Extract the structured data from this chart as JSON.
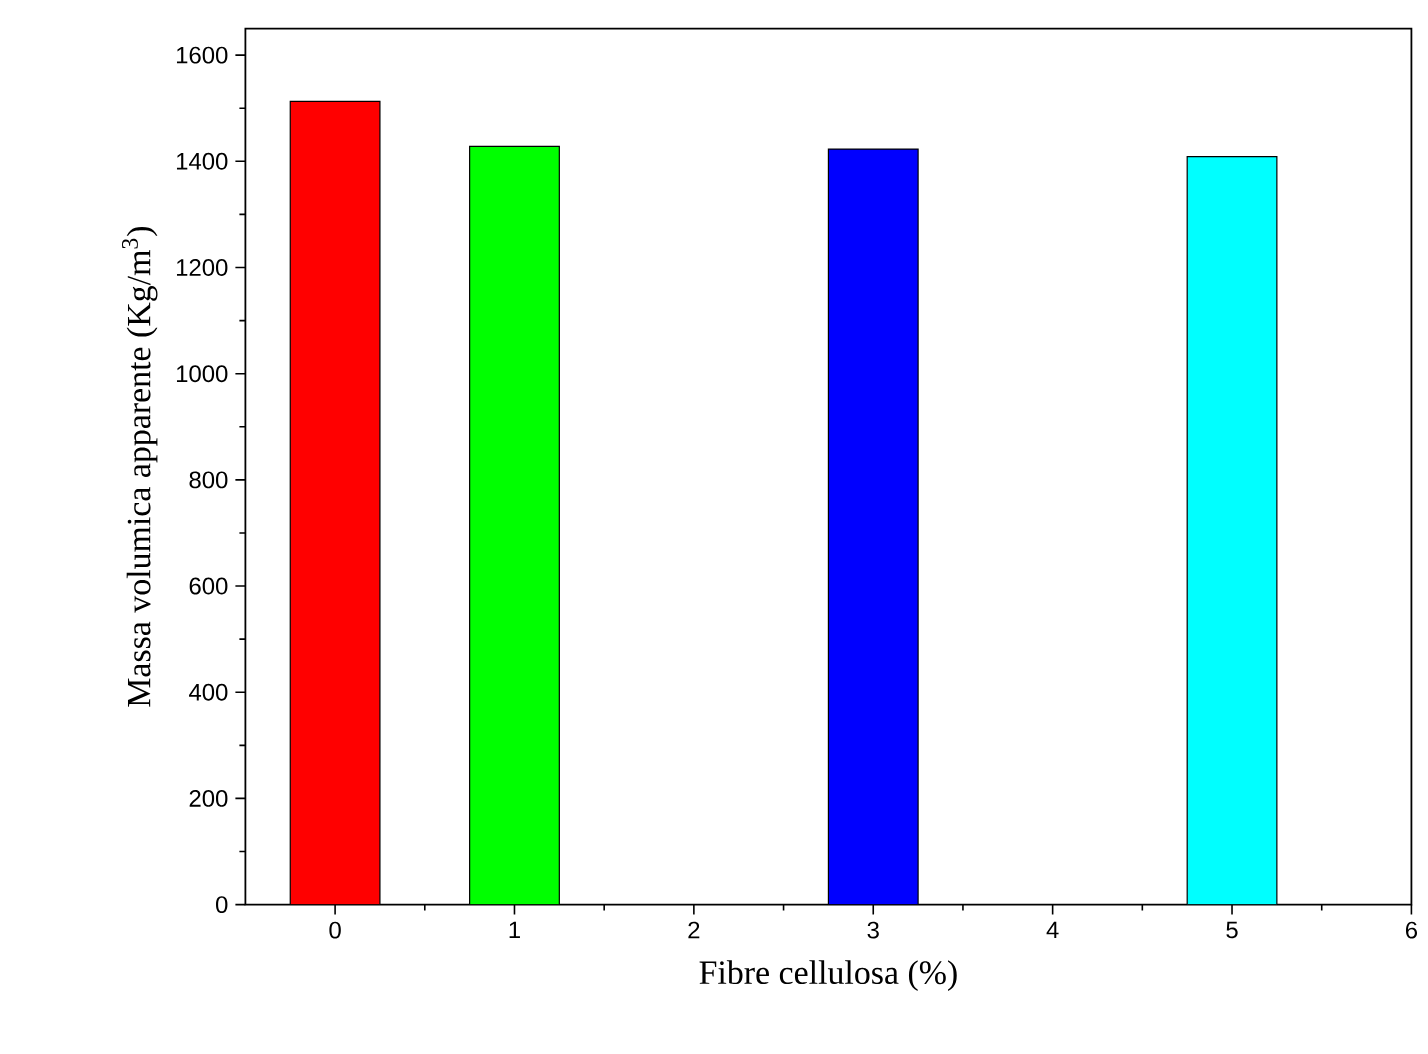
{
  "chart_data": {
    "type": "bar",
    "xlabel": "Fibre cellulosa (%)",
    "ylabel": "Massa volumica apparente  (Kg/m$^{3}$)",
    "x": [
      0,
      1,
      3,
      5
    ],
    "values": [
      1513,
      1428,
      1423,
      1409
    ],
    "colors": [
      "#ff0000",
      "#00ff00",
      "#0000ff",
      "#00ffff"
    ],
    "xlim": [
      -0.5,
      6
    ],
    "xticks": [
      0,
      1,
      2,
      3,
      4,
      5,
      6
    ],
    "ylim": [
      0,
      1650
    ],
    "yticks": [
      0,
      200,
      400,
      600,
      800,
      1000,
      1200,
      1400,
      1600
    ]
  }
}
